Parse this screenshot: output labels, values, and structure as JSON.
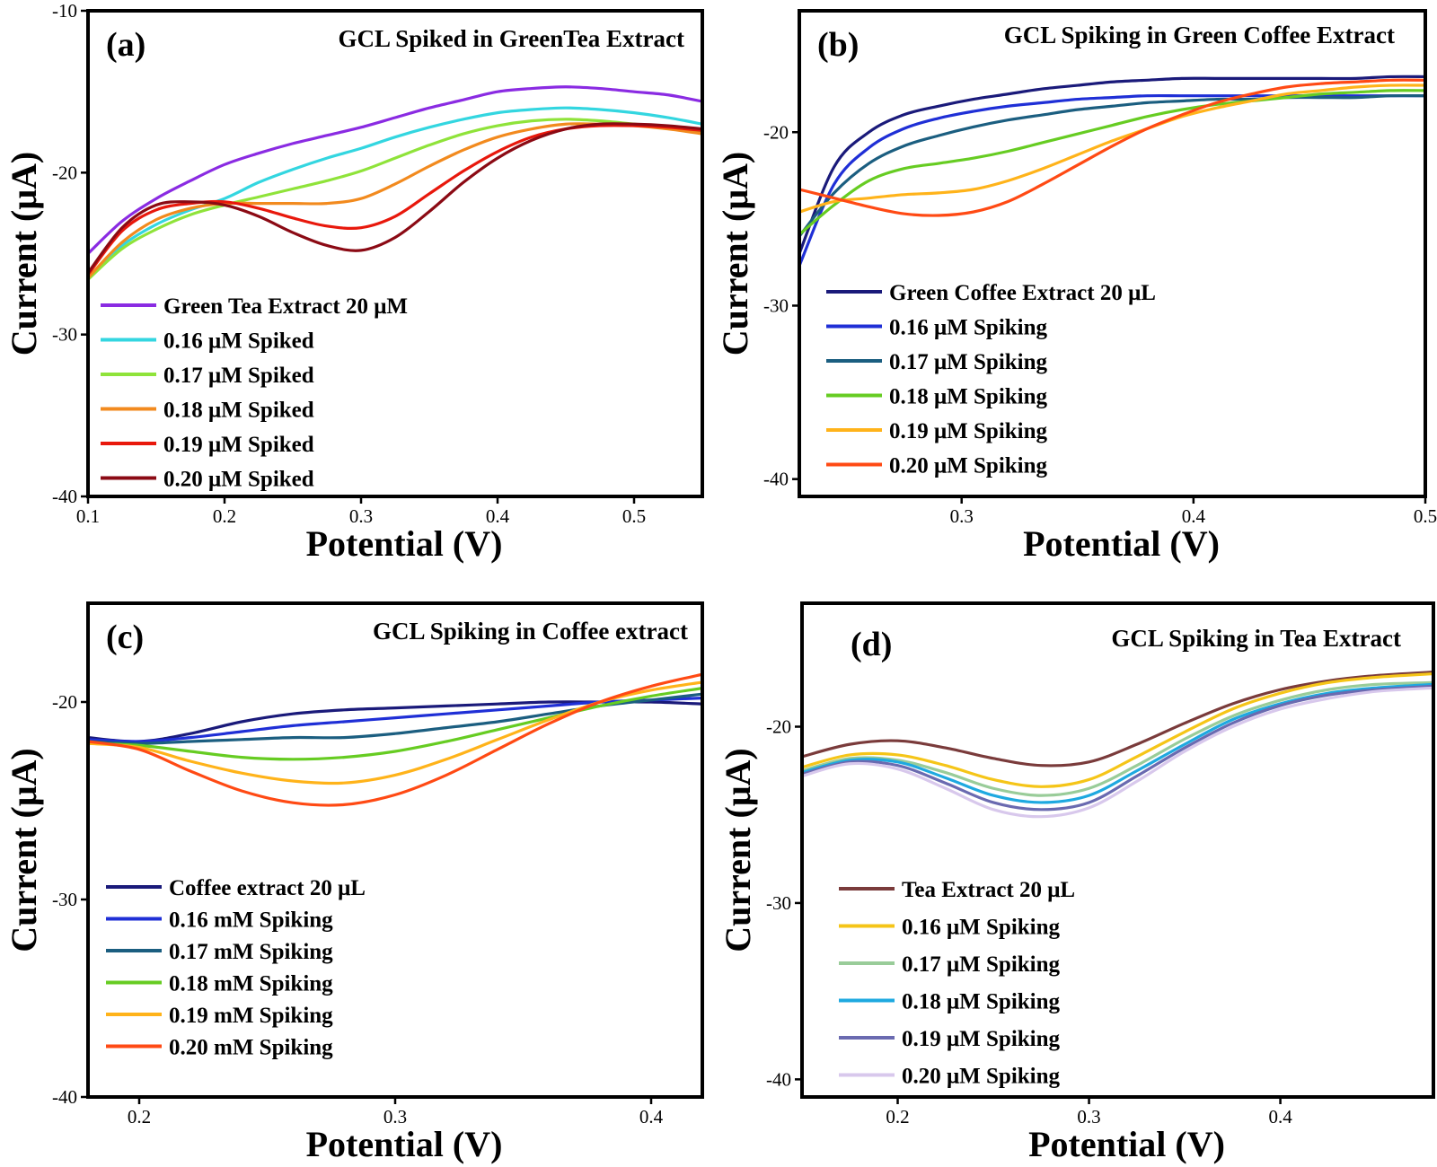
{
  "chart_data": [
    {
      "type": "line",
      "panel_label": "(a)",
      "title": "GCL Spiked in GreenTea Extract",
      "xlabel": "Potential (V)",
      "ylabel": "Current (μA)",
      "xlim": [
        0.1,
        0.55
      ],
      "ylim": [
        -40,
        -10
      ],
      "xticks": [
        0.1,
        0.2,
        0.3,
        0.4,
        0.5
      ],
      "yticks": [
        -10,
        -20,
        -30,
        -40
      ],
      "xtick_labels": [
        "0.1",
        "0.2",
        "0.3",
        "0.4",
        "0.5"
      ],
      "ytick_labels": [
        "-10",
        "-20",
        "-30",
        "-40"
      ],
      "legend_position": "lower-left",
      "grid": false,
      "x": [
        0.1,
        0.125,
        0.15,
        0.175,
        0.2,
        0.225,
        0.25,
        0.275,
        0.3,
        0.325,
        0.35,
        0.375,
        0.4,
        0.425,
        0.45,
        0.475,
        0.5,
        0.525,
        0.55
      ],
      "series": [
        {
          "name": "Green Tea Extract 20 μM",
          "color": "#8a2be2",
          "values": [
            -25.0,
            -23.0,
            -21.6,
            -20.5,
            -19.5,
            -18.8,
            -18.2,
            -17.7,
            -17.2,
            -16.6,
            -16.0,
            -15.5,
            -15.0,
            -14.8,
            -14.7,
            -14.8,
            -15.0,
            -15.2,
            -15.6
          ]
        },
        {
          "name": "0.16 μM Spiked",
          "color": "#33d6e0",
          "values": [
            -26.5,
            -24.5,
            -23.2,
            -22.3,
            -21.6,
            -20.6,
            -19.8,
            -19.1,
            -18.5,
            -17.8,
            -17.2,
            -16.7,
            -16.3,
            -16.1,
            -16.0,
            -16.1,
            -16.3,
            -16.6,
            -17.0
          ]
        },
        {
          "name": "0.17 μM Spiked",
          "color": "#8fe33a",
          "values": [
            -26.6,
            -24.7,
            -23.5,
            -22.6,
            -22.0,
            -21.5,
            -21.0,
            -20.5,
            -19.9,
            -19.1,
            -18.3,
            -17.6,
            -17.1,
            -16.8,
            -16.7,
            -16.8,
            -17.0,
            -17.2,
            -17.5
          ]
        },
        {
          "name": "0.18 μM Spiked",
          "color": "#f28a1e",
          "values": [
            -26.5,
            -24.3,
            -22.9,
            -22.2,
            -21.9,
            -21.9,
            -21.9,
            -21.9,
            -21.6,
            -20.7,
            -19.6,
            -18.6,
            -17.8,
            -17.3,
            -17.0,
            -17.0,
            -17.1,
            -17.3,
            -17.6
          ]
        },
        {
          "name": "0.19 μM Spiked",
          "color": "#e8180c",
          "values": [
            -26.3,
            -23.6,
            -22.3,
            -21.9,
            -21.8,
            -22.2,
            -22.8,
            -23.3,
            -23.4,
            -22.7,
            -21.3,
            -19.9,
            -18.7,
            -17.8,
            -17.3,
            -17.1,
            -17.1,
            -17.2,
            -17.4
          ]
        },
        {
          "name": "0.20 μM Spiked",
          "color": "#8b0a14",
          "values": [
            -26.2,
            -23.4,
            -22.0,
            -21.8,
            -22.0,
            -22.7,
            -23.7,
            -24.5,
            -24.8,
            -24.0,
            -22.4,
            -20.6,
            -19.1,
            -18.0,
            -17.3,
            -17.0,
            -17.0,
            -17.1,
            -17.3
          ]
        }
      ]
    },
    {
      "type": "line",
      "panel_label": "(b)",
      "title": "GCL Spiking in Green Coffee Extract",
      "xlabel": "Potential (V)",
      "ylabel": "Current (μA)",
      "xlim": [
        0.23,
        0.5
      ],
      "ylim": [
        -41,
        -13
      ],
      "xticks": [
        0.3,
        0.4,
        0.5
      ],
      "yticks": [
        -20,
        -30,
        -40
      ],
      "xtick_labels": [
        "0.3",
        "0.4",
        "0.5"
      ],
      "ytick_labels": [
        "-20",
        "-30",
        "-40"
      ],
      "legend_position": "lower-left",
      "grid": false,
      "x": [
        0.23,
        0.245,
        0.26,
        0.275,
        0.29,
        0.305,
        0.32,
        0.335,
        0.35,
        0.365,
        0.38,
        0.395,
        0.41,
        0.425,
        0.44,
        0.455,
        0.47,
        0.485,
        0.5
      ],
      "series": [
        {
          "name": "Green Coffee Extract 20 μL",
          "color": "#1a1a7a",
          "values": [
            -27.0,
            -22.0,
            -20.0,
            -19.0,
            -18.5,
            -18.1,
            -17.8,
            -17.5,
            -17.3,
            -17.1,
            -17.0,
            -16.9,
            -16.9,
            -16.9,
            -16.9,
            -16.9,
            -16.9,
            -16.8,
            -16.8
          ]
        },
        {
          "name": "0.16 μM Spiking",
          "color": "#1f2fd6",
          "values": [
            -27.7,
            -23.0,
            -20.9,
            -19.8,
            -19.2,
            -18.8,
            -18.5,
            -18.3,
            -18.1,
            -18.0,
            -17.9,
            -17.9,
            -17.9,
            -17.9,
            -17.9,
            -17.9,
            -17.9,
            -17.9,
            -17.9
          ]
        },
        {
          "name": "0.17 μM Spiking",
          "color": "#1b5e80",
          "values": [
            -26.0,
            -23.5,
            -21.8,
            -20.8,
            -20.2,
            -19.7,
            -19.3,
            -19.0,
            -18.7,
            -18.5,
            -18.3,
            -18.2,
            -18.1,
            -18.1,
            -18.0,
            -18.0,
            -18.0,
            -17.9,
            -17.9
          ]
        },
        {
          "name": "0.18 μM Spiking",
          "color": "#66cc22",
          "values": [
            -25.9,
            -24.2,
            -22.8,
            -22.1,
            -21.8,
            -21.5,
            -21.1,
            -20.6,
            -20.1,
            -19.6,
            -19.1,
            -18.7,
            -18.4,
            -18.2,
            -18.0,
            -17.8,
            -17.7,
            -17.6,
            -17.6
          ]
        },
        {
          "name": "0.19 μM Spiking",
          "color": "#ffb31a",
          "values": [
            -24.6,
            -24.0,
            -23.8,
            -23.6,
            -23.5,
            -23.3,
            -22.8,
            -22.1,
            -21.3,
            -20.5,
            -19.8,
            -19.1,
            -18.6,
            -18.2,
            -17.8,
            -17.6,
            -17.4,
            -17.3,
            -17.3
          ]
        },
        {
          "name": "0.20 μM Spiking",
          "color": "#ff4a14",
          "values": [
            -23.3,
            -23.8,
            -24.3,
            -24.7,
            -24.8,
            -24.6,
            -24.0,
            -23.0,
            -21.9,
            -20.8,
            -19.8,
            -19.0,
            -18.3,
            -17.8,
            -17.4,
            -17.2,
            -17.1,
            -17.0,
            -17.0
          ]
        }
      ]
    },
    {
      "type": "line",
      "panel_label": "(c)",
      "title": "GCL Spiking in Coffee extract",
      "xlabel": "Potential (V)",
      "ylabel": "Current (μA)",
      "xlim": [
        0.18,
        0.42
      ],
      "ylim": [
        -40,
        -15
      ],
      "xticks": [
        0.2,
        0.3,
        0.4
      ],
      "yticks": [
        -20,
        -30,
        -40
      ],
      "xtick_labels": [
        "0.2",
        "0.3",
        "0.4"
      ],
      "ytick_labels": [
        "-20",
        "-30",
        "-40"
      ],
      "legend_position": "lower-left",
      "grid": false,
      "x": [
        0.18,
        0.2,
        0.22,
        0.24,
        0.26,
        0.28,
        0.3,
        0.32,
        0.34,
        0.36,
        0.38,
        0.4,
        0.42
      ],
      "series": [
        {
          "name": "Coffee extract 20 μL",
          "color": "#1a1a7a",
          "values": [
            -21.8,
            -22.0,
            -21.6,
            -21.0,
            -20.6,
            -20.4,
            -20.3,
            -20.2,
            -20.1,
            -20.0,
            -20.0,
            -20.0,
            -20.1
          ]
        },
        {
          "name": "0.16 mM Spiking",
          "color": "#1f2fd6",
          "values": [
            -21.9,
            -22.0,
            -21.8,
            -21.5,
            -21.2,
            -21.0,
            -20.8,
            -20.6,
            -20.4,
            -20.2,
            -20.0,
            -19.9,
            -19.8
          ]
        },
        {
          "name": "0.17 mM Spiking",
          "color": "#1b5e80",
          "values": [
            -22.0,
            -22.1,
            -22.0,
            -21.9,
            -21.8,
            -21.8,
            -21.6,
            -21.3,
            -21.0,
            -20.6,
            -20.2,
            -19.9,
            -19.6
          ]
        },
        {
          "name": "0.18 mM Spiking",
          "color": "#66cc22",
          "values": [
            -22.1,
            -22.2,
            -22.5,
            -22.8,
            -22.9,
            -22.8,
            -22.5,
            -22.0,
            -21.4,
            -20.8,
            -20.2,
            -19.7,
            -19.3
          ]
        },
        {
          "name": "0.19 mM Spiking",
          "color": "#ffb31a",
          "values": [
            -22.1,
            -22.3,
            -23.0,
            -23.6,
            -24.0,
            -24.1,
            -23.7,
            -22.9,
            -21.9,
            -20.9,
            -20.0,
            -19.4,
            -19.0
          ]
        },
        {
          "name": "0.20 mM Spiking",
          "color": "#ff4a14",
          "values": [
            -22.0,
            -22.4,
            -23.5,
            -24.5,
            -25.1,
            -25.2,
            -24.7,
            -23.7,
            -22.4,
            -21.1,
            -20.0,
            -19.2,
            -18.6
          ]
        }
      ]
    },
    {
      "type": "line",
      "panel_label": "(d)",
      "title": "GCL Spiking in Tea Extract",
      "xlabel": "Potential (V)",
      "ylabel": "Current (μA)",
      "xlim": [
        0.15,
        0.48
      ],
      "ylim": [
        -41,
        -13
      ],
      "xticks": [
        0.2,
        0.3,
        0.4
      ],
      "yticks": [
        -20,
        -30,
        -40
      ],
      "xtick_labels": [
        "0.2",
        "0.3",
        "0.4"
      ],
      "ytick_labels": [
        "-20",
        "-30",
        "-40"
      ],
      "legend_position": "lower-left",
      "grid": false,
      "x": [
        0.15,
        0.175,
        0.2,
        0.225,
        0.25,
        0.275,
        0.3,
        0.325,
        0.35,
        0.375,
        0.4,
        0.425,
        0.45,
        0.48
      ],
      "series": [
        {
          "name": "Tea Extract 20 μL",
          "color": "#7a3b3b",
          "values": [
            -21.7,
            -21.0,
            -20.8,
            -21.2,
            -21.8,
            -22.2,
            -22.0,
            -21.0,
            -19.8,
            -18.7,
            -17.9,
            -17.4,
            -17.1,
            -16.9
          ]
        },
        {
          "name": "0.16 μM Spiking",
          "color": "#f5c518",
          "values": [
            -22.3,
            -21.6,
            -21.6,
            -22.2,
            -23.0,
            -23.4,
            -23.0,
            -21.7,
            -20.3,
            -19.0,
            -18.1,
            -17.5,
            -17.2,
            -17.0
          ]
        },
        {
          "name": "0.17 μM Spiking",
          "color": "#99cc99",
          "values": [
            -22.5,
            -21.8,
            -21.9,
            -22.6,
            -23.5,
            -23.9,
            -23.5,
            -22.2,
            -20.7,
            -19.4,
            -18.5,
            -17.9,
            -17.6,
            -17.5
          ]
        },
        {
          "name": "0.18 μM Spiking",
          "color": "#1ea9e0",
          "values": [
            -22.6,
            -21.9,
            -22.0,
            -22.9,
            -23.9,
            -24.3,
            -23.9,
            -22.5,
            -21.0,
            -19.6,
            -18.7,
            -18.1,
            -17.8,
            -17.6
          ]
        },
        {
          "name": "0.19 μM Spiking",
          "color": "#6a6ab0",
          "values": [
            -22.7,
            -22.0,
            -22.2,
            -23.2,
            -24.3,
            -24.7,
            -24.3,
            -22.8,
            -21.2,
            -19.8,
            -18.8,
            -18.2,
            -17.9,
            -17.7
          ]
        },
        {
          "name": "0.20 μM Spiking",
          "color": "#d8c8ec",
          "values": [
            -22.8,
            -22.1,
            -22.4,
            -23.5,
            -24.7,
            -25.1,
            -24.6,
            -23.1,
            -21.4,
            -20.0,
            -19.0,
            -18.4,
            -18.0,
            -17.8
          ]
        }
      ]
    }
  ]
}
